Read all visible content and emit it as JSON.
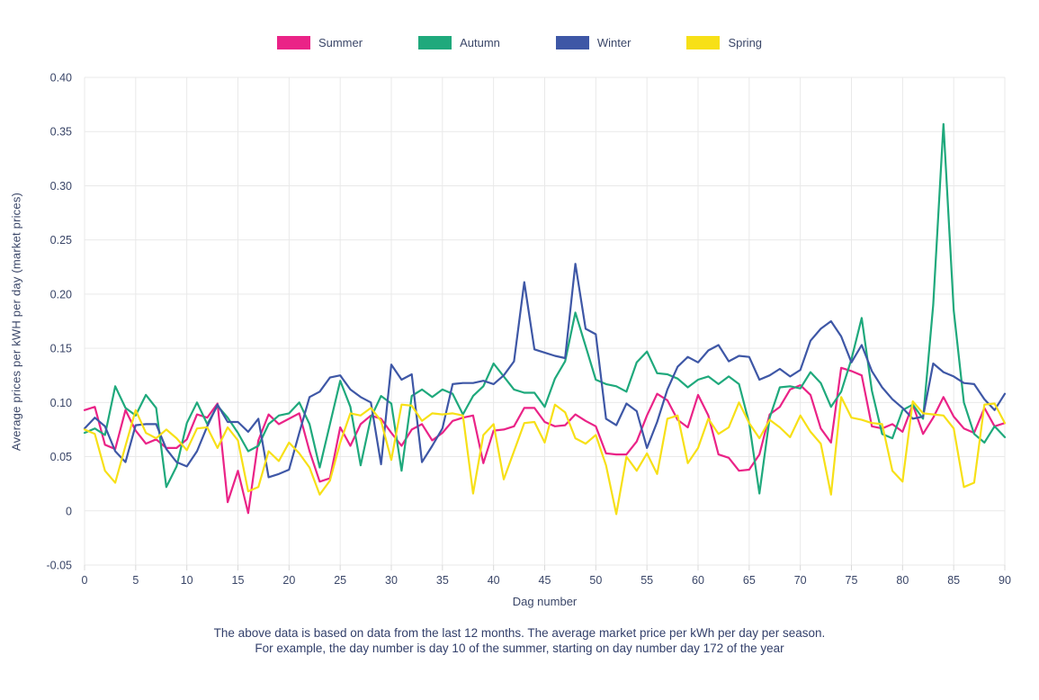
{
  "accent_colors": {
    "text_navy": "#3A4668",
    "grid": "#E9E9E9",
    "tick_mark": "#D8D8D8",
    "background": "#FFFFFF"
  },
  "legend": {
    "items": [
      {
        "label": "Summer",
        "color": "#EA2387"
      },
      {
        "label": "Autumn",
        "color": "#1FA97C"
      },
      {
        "label": "Winter",
        "color": "#3E57A6"
      },
      {
        "label": "Spring",
        "color": "#F7E017"
      }
    ]
  },
  "caption": {
    "line1": "The above data is based on data from the last 12 months. The average market price per kWh per day per season.",
    "line2": "For example, the day number is day 10 of the summer, starting on day number day 172 of the year"
  },
  "chart_data": {
    "type": "line",
    "title": "",
    "xlabel": "Dag number",
    "ylabel": "Average prices per kWH per day (market prices)",
    "xlim": [
      0,
      90
    ],
    "ylim": [
      -0.05,
      0.4
    ],
    "x_tick_step": 5,
    "y_tick_step": 0.05,
    "x_ticks": [
      0,
      5,
      10,
      15,
      20,
      25,
      30,
      35,
      40,
      45,
      50,
      55,
      60,
      65,
      70,
      75,
      80,
      85,
      90
    ],
    "y_tick_labels": [
      "-0.05",
      "0",
      "0.05",
      "0.10",
      "0.15",
      "0.20",
      "0.25",
      "0.30",
      "0.35",
      "0.40"
    ],
    "grid": true,
    "legend_position": "top-center",
    "x": "integer days 0 through 90, step 1",
    "series": [
      {
        "name": "Summer",
        "color": "#EA2387",
        "values": [
          0.093,
          0.096,
          0.061,
          0.057,
          0.093,
          0.074,
          0.062,
          0.066,
          0.058,
          0.058,
          0.066,
          0.089,
          0.086,
          0.099,
          0.008,
          0.037,
          -0.002,
          0.065,
          0.089,
          0.08,
          0.085,
          0.09,
          0.055,
          0.027,
          0.03,
          0.077,
          0.06,
          0.08,
          0.088,
          0.085,
          0.072,
          0.06,
          0.075,
          0.08,
          0.065,
          0.072,
          0.083,
          0.086,
          0.088,
          0.044,
          0.074,
          0.075,
          0.078,
          0.095,
          0.095,
          0.082,
          0.078,
          0.079,
          0.089,
          0.083,
          0.078,
          0.053,
          0.052,
          0.052,
          0.064,
          0.088,
          0.108,
          0.102,
          0.084,
          0.077,
          0.107,
          0.088,
          0.052,
          0.049,
          0.037,
          0.038,
          0.052,
          0.089,
          0.096,
          0.112,
          0.116,
          0.107,
          0.076,
          0.063,
          0.132,
          0.129,
          0.125,
          0.078,
          0.076,
          0.08,
          0.073,
          0.098,
          0.071,
          0.086,
          0.105,
          0.087,
          0.076,
          0.072,
          0.095,
          0.078,
          0.081
        ]
      },
      {
        "name": "Autumn",
        "color": "#1FA97C",
        "values": [
          0.072,
          0.076,
          0.07,
          0.115,
          0.095,
          0.088,
          0.107,
          0.095,
          0.022,
          0.041,
          0.081,
          0.1,
          0.08,
          0.097,
          0.086,
          0.072,
          0.055,
          0.06,
          0.08,
          0.088,
          0.09,
          0.1,
          0.08,
          0.04,
          0.08,
          0.12,
          0.096,
          0.042,
          0.086,
          0.106,
          0.099,
          0.037,
          0.106,
          0.112,
          0.105,
          0.112,
          0.108,
          0.089,
          0.106,
          0.115,
          0.136,
          0.124,
          0.112,
          0.109,
          0.109,
          0.096,
          0.122,
          0.138,
          0.183,
          0.152,
          0.121,
          0.117,
          0.115,
          0.11,
          0.137,
          0.147,
          0.127,
          0.126,
          0.122,
          0.114,
          0.121,
          0.124,
          0.117,
          0.124,
          0.117,
          0.081,
          0.016,
          0.086,
          0.114,
          0.115,
          0.113,
          0.128,
          0.118,
          0.096,
          0.11,
          0.14,
          0.178,
          0.111,
          0.071,
          0.067,
          0.093,
          0.098,
          0.085,
          0.19,
          0.357,
          0.185,
          0.1,
          0.071,
          0.063,
          0.078,
          0.068
        ]
      },
      {
        "name": "Winter",
        "color": "#3E57A6",
        "values": [
          0.076,
          0.086,
          0.078,
          0.055,
          0.045,
          0.079,
          0.08,
          0.08,
          0.057,
          0.045,
          0.041,
          0.055,
          0.078,
          0.098,
          0.082,
          0.082,
          0.073,
          0.085,
          0.031,
          0.034,
          0.038,
          0.072,
          0.105,
          0.11,
          0.123,
          0.125,
          0.112,
          0.105,
          0.1,
          0.043,
          0.135,
          0.121,
          0.126,
          0.045,
          0.06,
          0.076,
          0.117,
          0.118,
          0.118,
          0.12,
          0.117,
          0.125,
          0.138,
          0.211,
          0.149,
          0.146,
          0.143,
          0.141,
          0.228,
          0.168,
          0.163,
          0.085,
          0.079,
          0.099,
          0.092,
          0.058,
          0.082,
          0.112,
          0.133,
          0.142,
          0.137,
          0.148,
          0.153,
          0.138,
          0.143,
          0.142,
          0.121,
          0.125,
          0.131,
          0.124,
          0.13,
          0.157,
          0.168,
          0.175,
          0.161,
          0.137,
          0.153,
          0.129,
          0.114,
          0.103,
          0.095,
          0.085,
          0.087,
          0.136,
          0.128,
          0.124,
          0.118,
          0.117,
          0.103,
          0.093,
          0.108
        ]
      },
      {
        "name": "Spring",
        "color": "#F7E017",
        "values": [
          0.075,
          0.071,
          0.037,
          0.026,
          0.06,
          0.093,
          0.072,
          0.067,
          0.075,
          0.067,
          0.056,
          0.076,
          0.077,
          0.058,
          0.077,
          0.065,
          0.018,
          0.022,
          0.055,
          0.046,
          0.063,
          0.053,
          0.04,
          0.015,
          0.028,
          0.063,
          0.09,
          0.088,
          0.095,
          0.083,
          0.047,
          0.098,
          0.097,
          0.083,
          0.09,
          0.089,
          0.09,
          0.088,
          0.016,
          0.07,
          0.08,
          0.029,
          0.055,
          0.081,
          0.082,
          0.063,
          0.098,
          0.091,
          0.067,
          0.062,
          0.07,
          0.042,
          -0.003,
          0.05,
          0.037,
          0.053,
          0.034,
          0.085,
          0.088,
          0.044,
          0.058,
          0.085,
          0.071,
          0.077,
          0.1,
          0.081,
          0.067,
          0.084,
          0.077,
          0.068,
          0.088,
          0.073,
          0.062,
          0.015,
          0.105,
          0.086,
          0.084,
          0.081,
          0.08,
          0.037,
          0.027,
          0.101,
          0.09,
          0.089,
          0.088,
          0.076,
          0.022,
          0.026,
          0.098,
          0.099,
          0.081
        ]
      }
    ]
  }
}
